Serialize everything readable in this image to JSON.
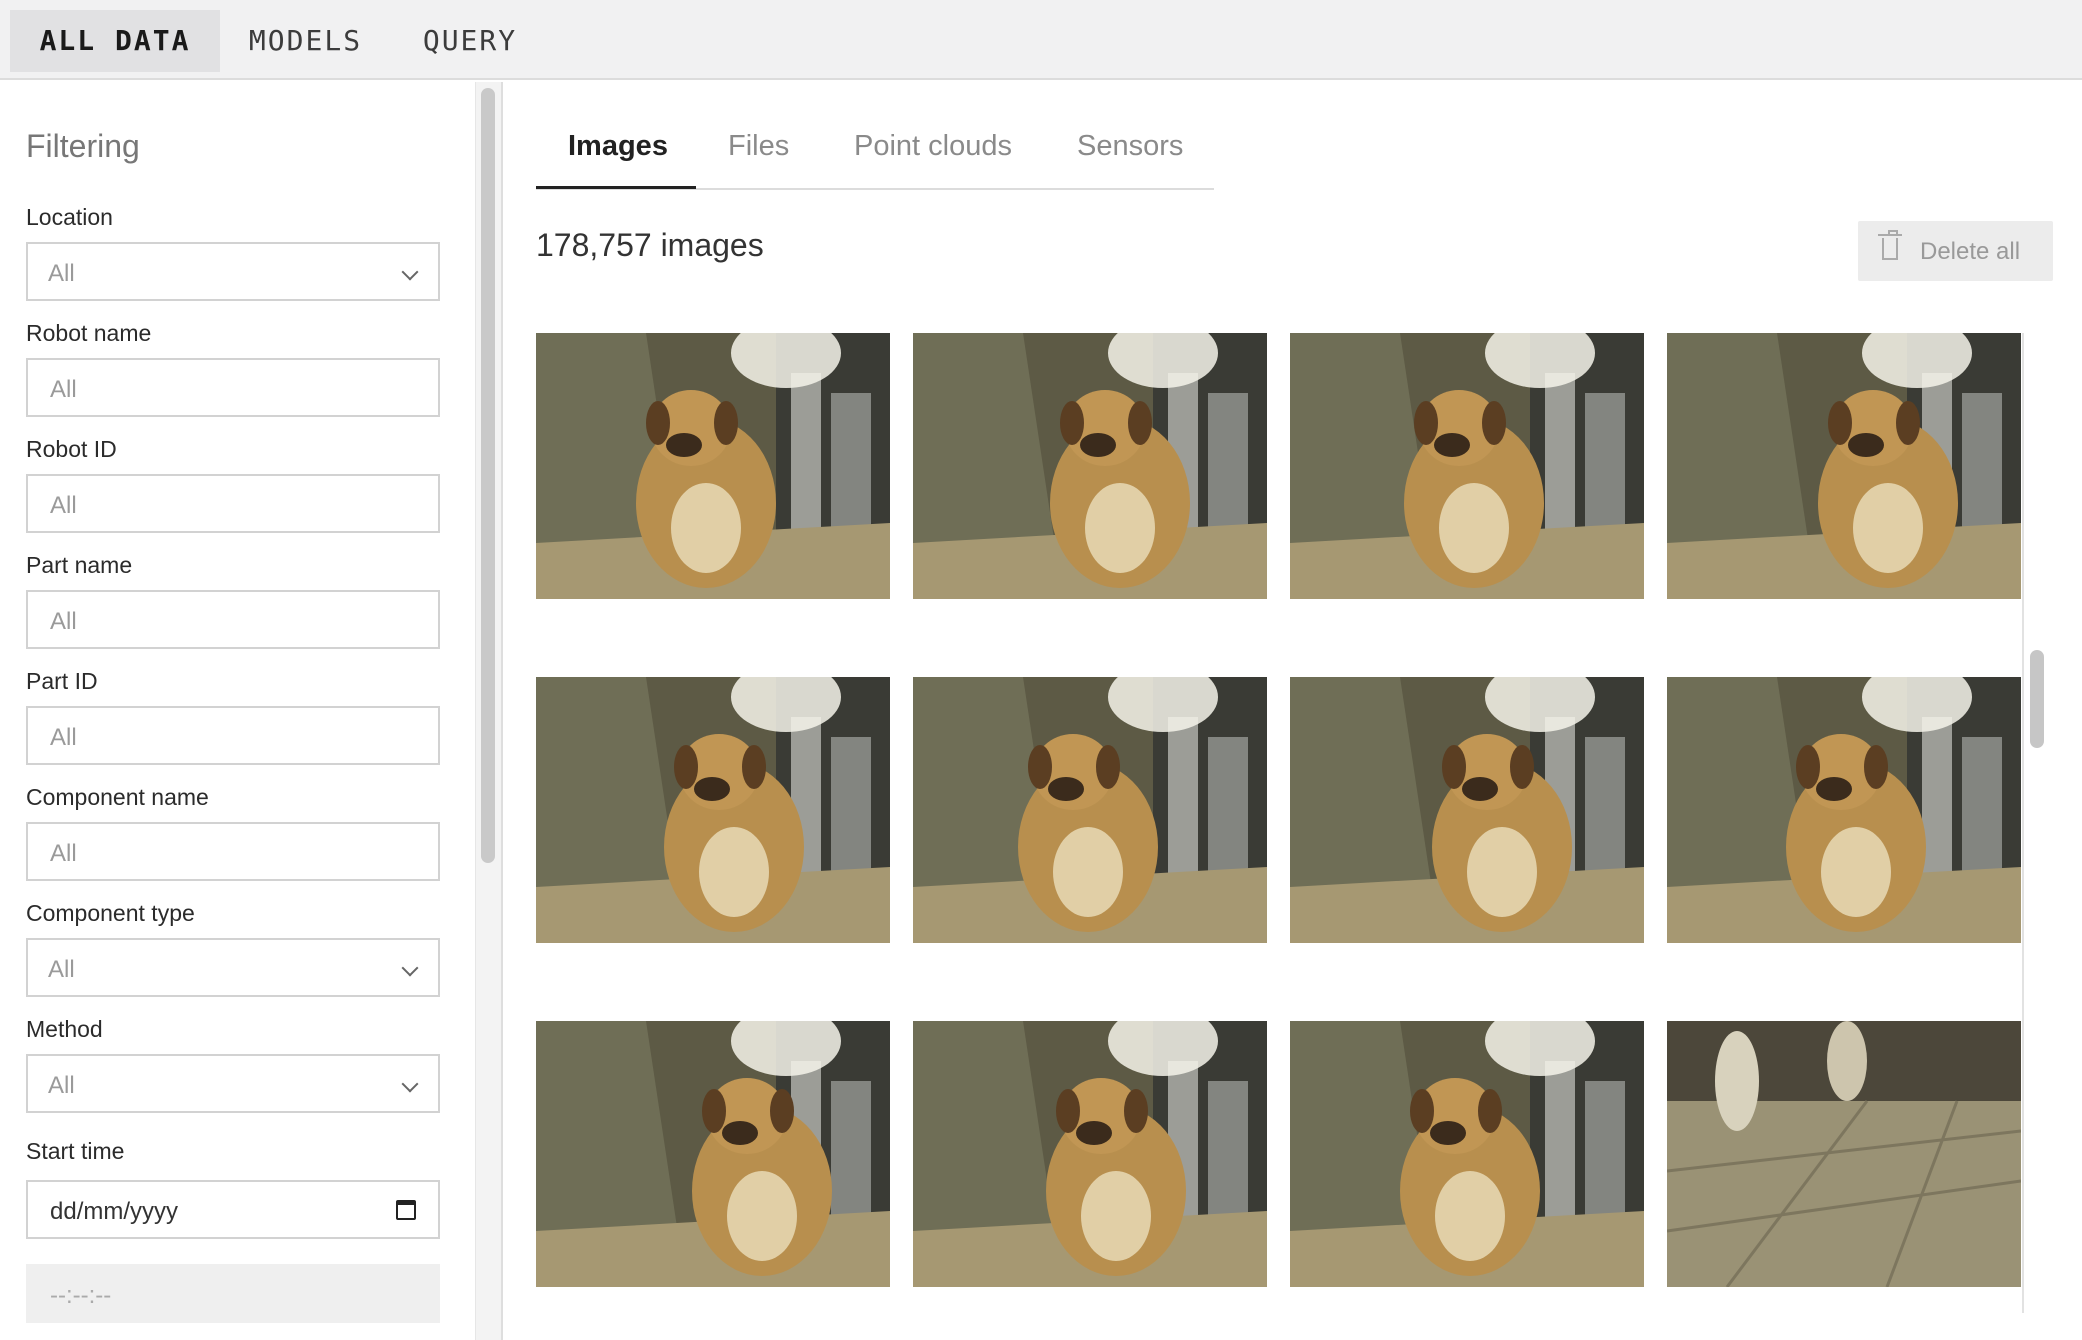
{
  "nav": {
    "tabs": [
      {
        "label": "ALL DATA",
        "active": true
      },
      {
        "label": "MODELS",
        "active": false
      },
      {
        "label": "QUERY",
        "active": false
      }
    ]
  },
  "sidebar": {
    "heading": "Filtering",
    "fields": [
      {
        "label": "Location",
        "value": "All",
        "kind": "select"
      },
      {
        "label": "Robot name",
        "value": "All",
        "kind": "input"
      },
      {
        "label": "Robot ID",
        "value": "All",
        "kind": "input"
      },
      {
        "label": "Part name",
        "value": "All",
        "kind": "input"
      },
      {
        "label": "Part ID",
        "value": "All",
        "kind": "input"
      },
      {
        "label": "Component name",
        "value": "All",
        "kind": "input"
      },
      {
        "label": "Component type",
        "value": "All",
        "kind": "select"
      },
      {
        "label": "Method",
        "value": "All",
        "kind": "select"
      }
    ],
    "start_time": {
      "label": "Start time",
      "date_placeholder": "dd/mm/yyyy",
      "time_placeholder": "--:--:--"
    }
  },
  "main": {
    "tabs": [
      {
        "label": "Images",
        "active": true
      },
      {
        "label": "Files",
        "active": false
      },
      {
        "label": "Point clouds",
        "active": false
      },
      {
        "label": "Sensors",
        "active": false
      }
    ],
    "count_label": "178,757 images",
    "delete_label": "Delete all",
    "images": [
      {
        "icon": "dog-photo-icon",
        "subject": "dog"
      },
      {
        "icon": "dog-photo-icon",
        "subject": "dog"
      },
      {
        "icon": "dog-photo-icon",
        "subject": "dog"
      },
      {
        "icon": "dog-photo-icon",
        "subject": "dog"
      },
      {
        "icon": "dog-photo-icon",
        "subject": "dog"
      },
      {
        "icon": "dog-photo-icon",
        "subject": "dog"
      },
      {
        "icon": "dog-photo-icon",
        "subject": "dog"
      },
      {
        "icon": "dog-photo-icon",
        "subject": "dog"
      },
      {
        "icon": "dog-photo-icon",
        "subject": "dog"
      },
      {
        "icon": "dog-photo-icon",
        "subject": "dog"
      },
      {
        "icon": "dog-photo-icon",
        "subject": "dog"
      },
      {
        "icon": "floor-photo-icon",
        "subject": "floor"
      }
    ]
  },
  "colors": {
    "accent": "#222222",
    "nav_bg": "#f1f1f2",
    "muted": "#8a8a8a"
  }
}
